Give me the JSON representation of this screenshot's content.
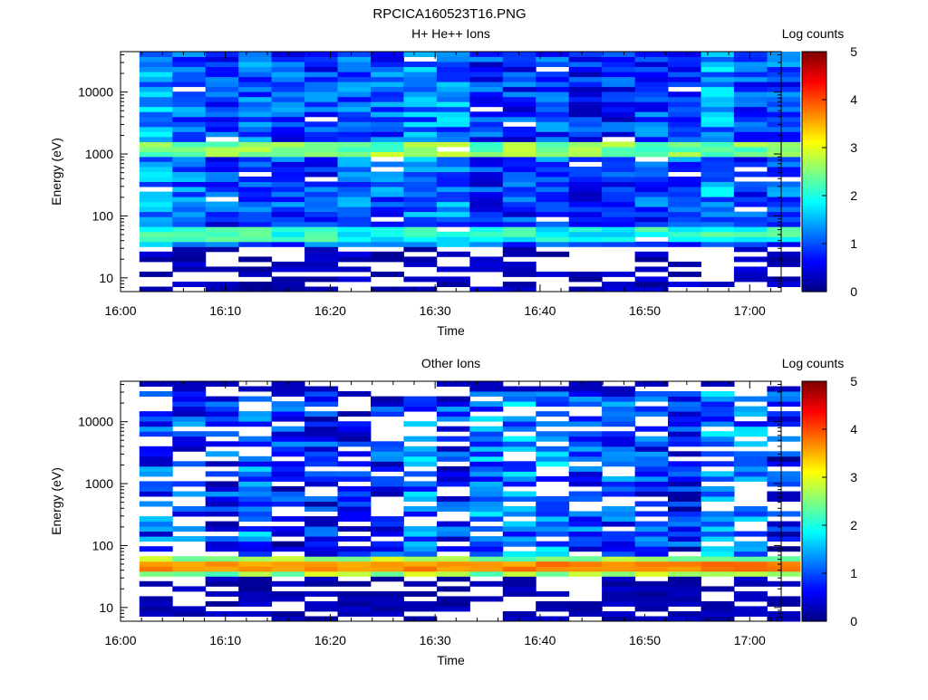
{
  "page_title": "RPCICA160523T16.PNG",
  "chart_data": [
    {
      "type": "heatmap",
      "title": "H+ He++ Ions",
      "xlabel": "Time",
      "ylabel": "Energy (eV)",
      "colorbar_label": "Log counts",
      "colorbar_ticks": [
        "0",
        "1",
        "2",
        "3",
        "4",
        "5"
      ],
      "colorbar_range": [
        0,
        5
      ],
      "y_scale": "log",
      "y_range": [
        6,
        45000
      ],
      "y_ticks": [
        10,
        100,
        1000,
        10000
      ],
      "y_tick_labels": [
        "10",
        "100",
        "1000",
        "10000"
      ],
      "x_range_minutes": [
        0,
        63
      ],
      "x_tick_labels": [
        "16:00",
        "16:10",
        "16:20",
        "16:30",
        "16:40",
        "16:50",
        "17:00"
      ],
      "time_bins": [
        "16:02",
        "16:05",
        "16:08",
        "16:11",
        "16:15",
        "16:18",
        "16:21",
        "16:24",
        "16:27",
        "16:30",
        "16:34",
        "16:37",
        "16:40",
        "16:43",
        "16:46",
        "16:50",
        "16:53",
        "16:56",
        "16:59",
        "17:02"
      ],
      "features": [
        {
          "energy_eV": 1100,
          "typical_log_counts": 2.5,
          "note": "band"
        },
        {
          "energy_eV": 50,
          "typical_log_counts": 2.0,
          "note": "band"
        }
      ],
      "peak_log_counts": 3.2
    },
    {
      "type": "heatmap",
      "title": "Other Ions",
      "xlabel": "Time",
      "ylabel": "Energy (eV)",
      "colorbar_label": "Log counts",
      "colorbar_ticks": [
        "0",
        "1",
        "2",
        "3",
        "4",
        "5"
      ],
      "colorbar_range": [
        0,
        5
      ],
      "y_scale": "log",
      "y_range": [
        6,
        45000
      ],
      "y_ticks": [
        10,
        100,
        1000,
        10000
      ],
      "y_tick_labels": [
        "10",
        "100",
        "1000",
        "10000"
      ],
      "x_range_minutes": [
        0,
        63
      ],
      "x_tick_labels": [
        "16:00",
        "16:10",
        "16:20",
        "16:30",
        "16:40",
        "16:50",
        "17:00"
      ],
      "time_bins": [
        "16:02",
        "16:05",
        "16:08",
        "16:11",
        "16:15",
        "16:18",
        "16:21",
        "16:24",
        "16:27",
        "16:30",
        "16:34",
        "16:37",
        "16:40",
        "16:43",
        "16:46",
        "16:50",
        "16:53",
        "16:56",
        "16:59",
        "17:02"
      ],
      "features": [
        {
          "energy_eV": 47,
          "typical_log_counts": 3.8,
          "note": "band"
        }
      ],
      "peak_log_counts": 3.9
    }
  ]
}
